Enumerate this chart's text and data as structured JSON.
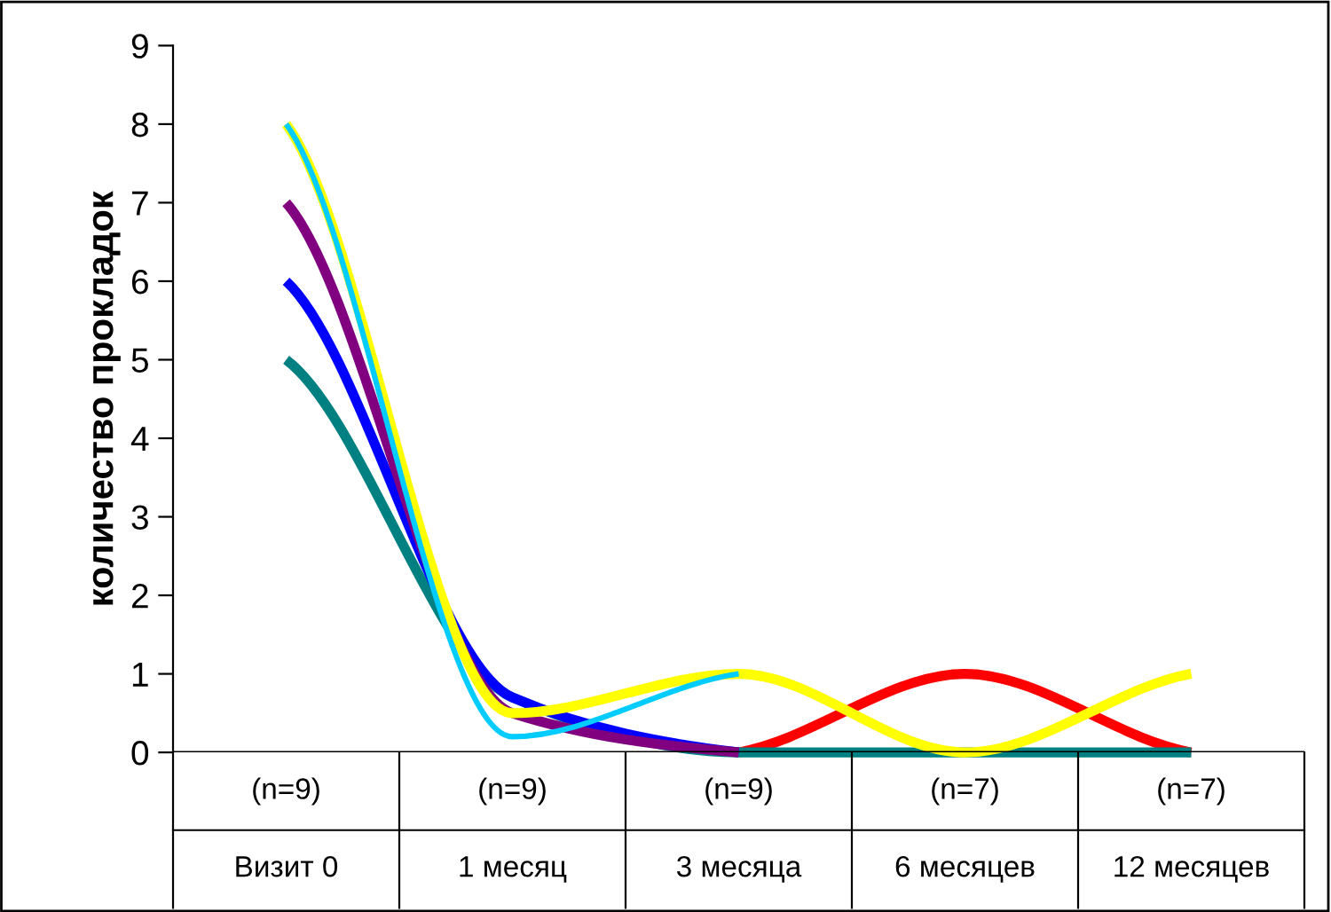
{
  "chart_data": {
    "type": "line",
    "ylabel": "количество прокладок",
    "categories": [
      "(n=9)\nВизит 0",
      "(n=9)\n1 месяц",
      "(n=9)\n3 месяца",
      "(n=7)\n6 месяцев",
      "(n=7)\n12 месяцев"
    ],
    "ylim": [
      0,
      9
    ],
    "yticks": [
      0,
      1,
      2,
      3,
      4,
      5,
      6,
      7,
      8,
      9
    ],
    "grid": false,
    "legend": false,
    "marker": "none",
    "line_style": "solid",
    "series": [
      {
        "color": "#ff0000",
        "values": [
          null,
          null,
          0,
          1,
          0
        ]
      },
      {
        "color": "#008080",
        "values": [
          5,
          0.7,
          0,
          0,
          0
        ]
      },
      {
        "color": "#0000ff",
        "values": [
          6,
          0.7,
          0,
          null,
          null
        ]
      },
      {
        "color": "#800080",
        "values": [
          7,
          0.5,
          0,
          null,
          null
        ]
      },
      {
        "color": "#ffff00",
        "values": [
          8,
          0.5,
          1,
          0,
          1
        ]
      },
      {
        "color": "#00ccff",
        "values": [
          8,
          0.2,
          1,
          null,
          null
        ]
      }
    ]
  }
}
